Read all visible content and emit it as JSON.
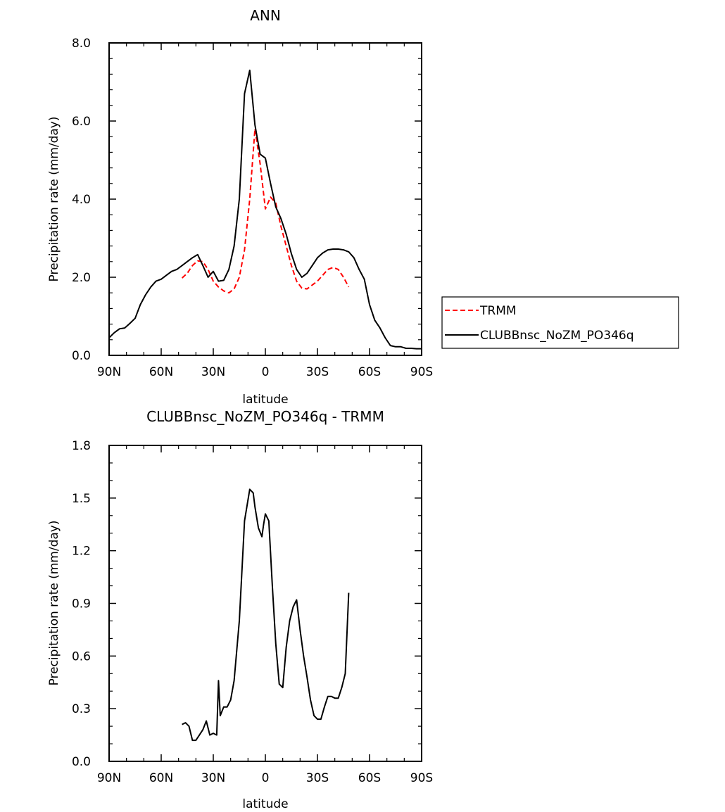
{
  "chart_data": [
    {
      "type": "line",
      "title": "ANN",
      "xlabel": "latitude",
      "ylabel": "Precipitation rate (mm/day)",
      "xlim": [
        90,
        -90
      ],
      "ylim": [
        0,
        8
      ],
      "x_ticks": [
        {
          "value": 90,
          "label": "90N"
        },
        {
          "value": 60,
          "label": "60N"
        },
        {
          "value": 30,
          "label": "30N"
        },
        {
          "value": 0,
          "label": "0"
        },
        {
          "value": -30,
          "label": "30S"
        },
        {
          "value": -60,
          "label": "60S"
        },
        {
          "value": -90,
          "label": "90S"
        }
      ],
      "y_ticks": [
        {
          "value": 0,
          "label": "0.0"
        },
        {
          "value": 2,
          "label": "2.0"
        },
        {
          "value": 4,
          "label": "4.0"
        },
        {
          "value": 6,
          "label": "6.0"
        },
        {
          "value": 8,
          "label": "8.0"
        }
      ],
      "legend_position": "right",
      "series": [
        {
          "name": "TRMM",
          "color": "#ff0000",
          "style": "dashed",
          "x": [
            48,
            45,
            42,
            39,
            36,
            33,
            30,
            27,
            24,
            21,
            18,
            15,
            12,
            9,
            6,
            3,
            0,
            -3,
            -6,
            -9,
            -12,
            -15,
            -18,
            -21,
            -24,
            -27,
            -30,
            -33,
            -36,
            -39,
            -42,
            -45,
            -48
          ],
          "y": [
            1.98,
            2.1,
            2.3,
            2.42,
            2.4,
            2.2,
            1.9,
            1.75,
            1.65,
            1.6,
            1.7,
            2.0,
            2.7,
            4.0,
            5.8,
            4.9,
            3.75,
            4.05,
            3.9,
            3.3,
            2.8,
            2.3,
            1.9,
            1.72,
            1.7,
            1.8,
            1.9,
            2.05,
            2.2,
            2.25,
            2.2,
            2.0,
            1.75
          ]
        },
        {
          "name": "CLUBBnsc_NoZM_PO346q",
          "color": "#000000",
          "style": "solid",
          "x": [
            90,
            87,
            84,
            81,
            78,
            75,
            72,
            69,
            66,
            63,
            60,
            57,
            54,
            51,
            48,
            45,
            42,
            39,
            36,
            33,
            30,
            27,
            24,
            21,
            18,
            15,
            12,
            9,
            6,
            3,
            0,
            -3,
            -6,
            -9,
            -12,
            -15,
            -18,
            -21,
            -24,
            -27,
            -30,
            -33,
            -36,
            -39,
            -42,
            -45,
            -48,
            -51,
            -54,
            -57,
            -60,
            -63,
            -66,
            -69,
            -72,
            -75,
            -78,
            -81,
            -84,
            -87,
            -90
          ],
          "y": [
            0.45,
            0.58,
            0.68,
            0.7,
            0.82,
            0.95,
            1.3,
            1.55,
            1.75,
            1.9,
            1.95,
            2.05,
            2.15,
            2.2,
            2.3,
            2.4,
            2.5,
            2.58,
            2.3,
            2.0,
            2.15,
            1.9,
            1.92,
            2.2,
            2.8,
            4.0,
            6.7,
            7.3,
            5.9,
            5.15,
            5.05,
            4.4,
            3.8,
            3.5,
            3.1,
            2.6,
            2.2,
            2.0,
            2.1,
            2.3,
            2.5,
            2.62,
            2.7,
            2.72,
            2.72,
            2.7,
            2.65,
            2.5,
            2.2,
            1.95,
            1.3,
            0.9,
            0.7,
            0.45,
            0.25,
            0.22,
            0.22,
            0.18,
            0.18,
            0.17,
            0.17
          ]
        }
      ]
    },
    {
      "type": "line",
      "title": "CLUBBnsc_NoZM_PO346q - TRMM",
      "xlabel": "latitude",
      "ylabel": "Precipitation rate (mm/day)",
      "xlim": [
        90,
        -90
      ],
      "ylim": [
        0,
        1.8
      ],
      "x_ticks": [
        {
          "value": 90,
          "label": "90N"
        },
        {
          "value": 60,
          "label": "60N"
        },
        {
          "value": 30,
          "label": "30N"
        },
        {
          "value": 0,
          "label": "0"
        },
        {
          "value": -30,
          "label": "30S"
        },
        {
          "value": -60,
          "label": "60S"
        },
        {
          "value": -90,
          "label": "90S"
        }
      ],
      "y_ticks": [
        {
          "value": 0,
          "label": "0.0"
        },
        {
          "value": 0.3,
          "label": "0.3"
        },
        {
          "value": 0.6,
          "label": "0.6"
        },
        {
          "value": 0.9,
          "label": "0.9"
        },
        {
          "value": 1.2,
          "label": "1.2"
        },
        {
          "value": 1.5,
          "label": "1.5"
        },
        {
          "value": 1.8,
          "label": "1.8"
        }
      ],
      "series": [
        {
          "color": "#000000",
          "style": "solid",
          "x": [
            48,
            46,
            44,
            42,
            40,
            38,
            36,
            34,
            32,
            30,
            28,
            27,
            26,
            24,
            22,
            20,
            18,
            15,
            12,
            9,
            7,
            6,
            4,
            2,
            1,
            0,
            -2,
            -4,
            -6,
            -8,
            -10,
            -12,
            -14,
            -16,
            -18,
            -20,
            -22,
            -24,
            -26,
            -28,
            -30,
            -32,
            -34,
            -36,
            -38,
            -40,
            -42,
            -44,
            -46,
            -48
          ],
          "y": [
            0.21,
            0.22,
            0.2,
            0.12,
            0.12,
            0.15,
            0.18,
            0.23,
            0.15,
            0.16,
            0.15,
            0.46,
            0.26,
            0.31,
            0.31,
            0.35,
            0.46,
            0.8,
            1.37,
            1.55,
            1.53,
            1.45,
            1.33,
            1.28,
            1.35,
            1.41,
            1.37,
            1.0,
            0.67,
            0.44,
            0.42,
            0.65,
            0.8,
            0.88,
            0.92,
            0.75,
            0.6,
            0.48,
            0.35,
            0.26,
            0.24,
            0.24,
            0.31,
            0.37,
            0.37,
            0.36,
            0.36,
            0.42,
            0.5,
            0.96
          ]
        }
      ]
    }
  ]
}
